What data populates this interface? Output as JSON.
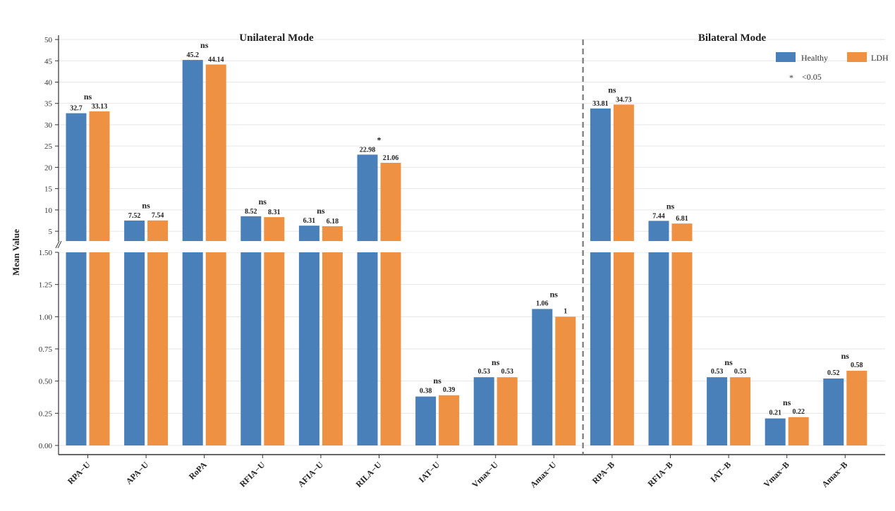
{
  "chart_data": {
    "type": "bar",
    "ylabel": "Mean Value",
    "section_titles": [
      "Unilateral Mode",
      "Bilateral Mode"
    ],
    "categories": [
      "RPA−U",
      "APA−U",
      "RoPA",
      "RFIA−U",
      "AFIA−U",
      "RILA−U",
      "IAT−U",
      "Vmax−U",
      "Amax−U",
      "RPA−B",
      "RFIA−B",
      "IAT−B",
      "Vmax−B",
      "Amax−B"
    ],
    "series": [
      {
        "name": "Healthy",
        "color": "#4a80b9",
        "values": [
          32.7,
          7.52,
          45.2,
          8.52,
          6.31,
          22.98,
          0.38,
          0.53,
          1.06,
          33.81,
          7.44,
          0.53,
          0.21,
          0.52
        ]
      },
      {
        "name": "LDH",
        "color": "#ef9143",
        "values": [
          33.13,
          7.54,
          44.14,
          8.31,
          6.18,
          21.06,
          0.39,
          0.53,
          1,
          34.73,
          6.81,
          0.53,
          0.22,
          0.58
        ]
      }
    ],
    "value_labels": {
      "Healthy": [
        "32.7",
        "7.52",
        "45.2",
        "8.52",
        "6.31",
        "22.98",
        "0.38",
        "0.53",
        "1.06",
        "33.81",
        "7.44",
        "0.53",
        "0.21",
        "0.52"
      ],
      "LDH": [
        "33.13",
        "7.54",
        "44.14",
        "8.31",
        "6.18",
        "21.06",
        "0.39",
        "0.53",
        "1",
        "34.73",
        "6.81",
        "0.53",
        "0.22",
        "0.58"
      ]
    },
    "significance": [
      "ns",
      "ns",
      "ns",
      "ns",
      "ns",
      "*",
      "ns",
      "ns",
      "ns",
      "ns",
      "ns",
      "ns",
      "ns",
      "ns"
    ],
    "significance_legend": {
      "symbol": "*",
      "text": "<0.05"
    },
    "y_axis_lower": {
      "range": [
        0,
        1.5
      ],
      "ticks": [
        "0.00",
        "0.25",
        "0.50",
        "0.75",
        "1.00",
        "1.25",
        "1.50"
      ]
    },
    "y_axis_upper": {
      "range": [
        2.7,
        51
      ],
      "ticks": [
        "5",
        "10",
        "15",
        "20",
        "25",
        "30",
        "35",
        "40",
        "45",
        "50"
      ]
    },
    "mode_divider_after_index": 8,
    "legend_position": "top-right",
    "grid": true
  }
}
